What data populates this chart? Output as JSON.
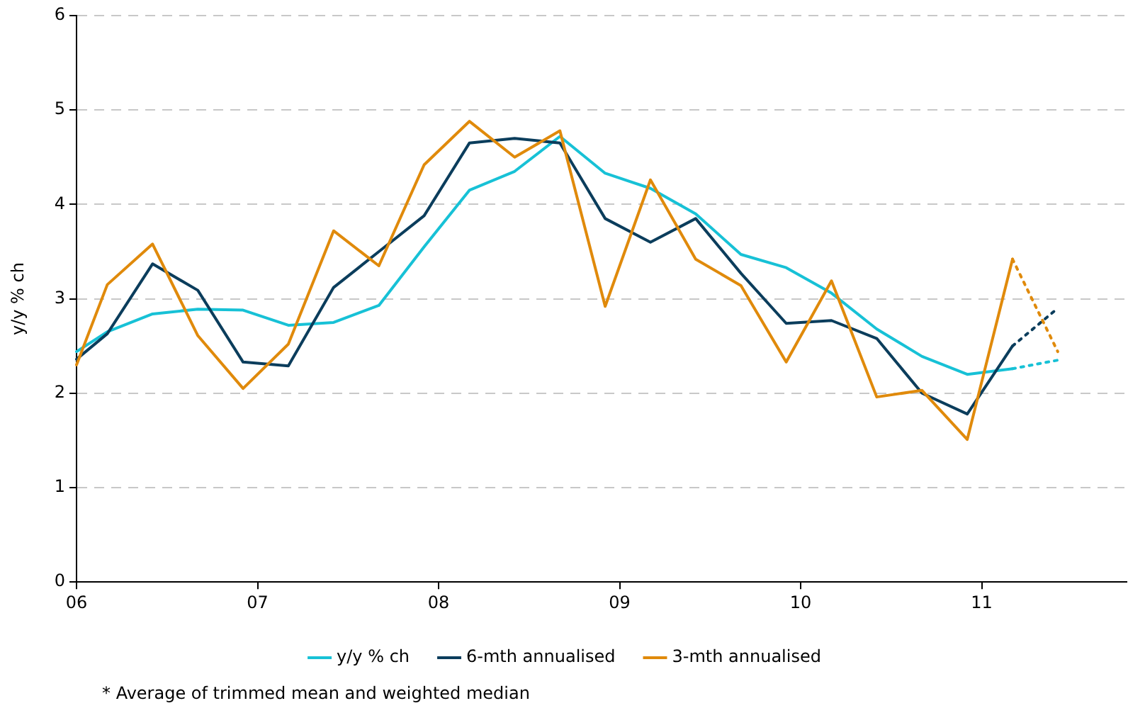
{
  "chart_data": {
    "type": "line",
    "ylabel": "y/y % ch",
    "xlim": [
      2006,
      2011.8
    ],
    "xticks": [
      {
        "value": 2006,
        "label": "06"
      },
      {
        "value": 2007,
        "label": "07"
      },
      {
        "value": 2008,
        "label": "08"
      },
      {
        "value": 2009,
        "label": "09"
      },
      {
        "value": 2010,
        "label": "10"
      },
      {
        "value": 2011,
        "label": "11"
      }
    ],
    "ylim": [
      0,
      6
    ],
    "yticks": [
      0,
      1,
      2,
      3,
      4,
      5,
      6
    ],
    "grid": "y",
    "legend": "bottom",
    "marker": "none",
    "line_style": "solid",
    "x": [
      2006.0,
      2006.17,
      2006.42,
      2006.67,
      2006.92,
      2007.17,
      2007.42,
      2007.67,
      2007.92,
      2008.17,
      2008.42,
      2008.67,
      2008.92,
      2009.17,
      2009.42,
      2009.67,
      2009.92,
      2010.17,
      2010.42,
      2010.67,
      2010.92,
      2011.17,
      2011.42
    ],
    "series": [
      {
        "name": "y/y % ch",
        "color": "#17c1d6",
        "values": [
          2.44,
          2.65,
          2.84,
          2.89,
          2.88,
          2.72,
          2.75,
          2.93,
          3.55,
          4.15,
          4.35,
          4.72,
          4.33,
          4.17,
          3.9,
          3.47,
          3.33,
          3.06,
          2.68,
          2.39,
          2.2,
          2.26,
          null
        ]
      },
      {
        "name": "6-mth annualised",
        "color": "#0b3d5c",
        "values": [
          2.36,
          2.63,
          3.37,
          3.09,
          2.33,
          2.29,
          3.12,
          3.5,
          3.88,
          4.65,
          4.7,
          4.65,
          3.85,
          3.6,
          3.85,
          3.27,
          2.74,
          2.77,
          2.58,
          2.0,
          1.78,
          2.5,
          null
        ]
      },
      {
        "name": "3-mth annualised",
        "color": "#e08a0b",
        "values": [
          2.3,
          3.15,
          3.58,
          2.61,
          2.05,
          2.52,
          3.72,
          3.35,
          4.42,
          4.88,
          4.5,
          4.78,
          2.92,
          4.26,
          3.42,
          3.14,
          2.33,
          3.19,
          1.96,
          2.03,
          1.51,
          3.42,
          null
        ]
      },
      {
        "color": "#17c1d6",
        "line_style": "dotted",
        "values": [
          null,
          null,
          null,
          null,
          null,
          null,
          null,
          null,
          null,
          null,
          null,
          null,
          null,
          null,
          null,
          null,
          null,
          null,
          null,
          null,
          null,
          2.26,
          2.35
        ]
      },
      {
        "color": "#0b3d5c",
        "line_style": "dotted",
        "values": [
          null,
          null,
          null,
          null,
          null,
          null,
          null,
          null,
          null,
          null,
          null,
          null,
          null,
          null,
          null,
          null,
          null,
          null,
          null,
          null,
          null,
          2.5,
          2.9
        ]
      },
      {
        "color": "#e08a0b",
        "line_style": "dotted",
        "values": [
          null,
          null,
          null,
          null,
          null,
          null,
          null,
          null,
          null,
          null,
          null,
          null,
          null,
          null,
          null,
          null,
          null,
          null,
          null,
          null,
          null,
          3.42,
          2.44
        ]
      }
    ],
    "annotations": [
      "* Average of trimmed mean and weighted median"
    ]
  }
}
